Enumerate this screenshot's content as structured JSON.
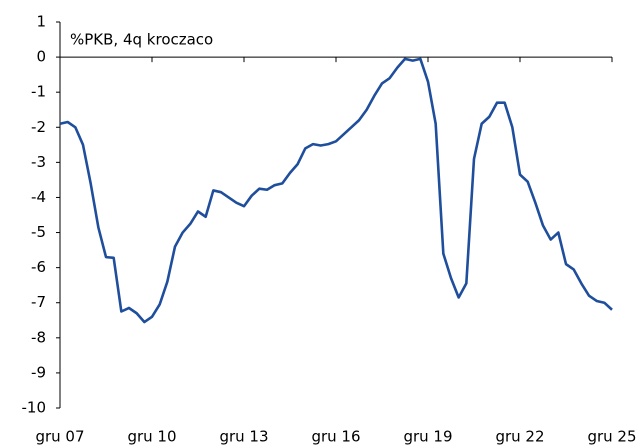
{
  "chart_data": {
    "type": "line",
    "annotation": "%PKB, 4q kroczaco",
    "categories": [
      "gru 07",
      null,
      null,
      null,
      null,
      null,
      null,
      null,
      null,
      null,
      null,
      null,
      "gru 10",
      null,
      null,
      null,
      null,
      null,
      null,
      null,
      null,
      null,
      null,
      null,
      "gru 13",
      null,
      null,
      null,
      null,
      null,
      null,
      null,
      null,
      null,
      null,
      null,
      "gru 16",
      null,
      null,
      null,
      null,
      null,
      null,
      null,
      null,
      null,
      null,
      null,
      "gru 19",
      null,
      null,
      null,
      null,
      null,
      null,
      null,
      null,
      null,
      null,
      null,
      "gru 22",
      null,
      null,
      null,
      null,
      null,
      null,
      null,
      null,
      null,
      null,
      null,
      "gru 25"
    ],
    "series": [
      {
        "name": null,
        "color": "#1f4e9c",
        "values": [
          -1.9,
          -1.85,
          -2.0,
          -2.5,
          -3.6,
          -4.85,
          -5.7,
          -5.72,
          -7.25,
          -7.15,
          -7.3,
          -7.55,
          -7.4,
          -7.05,
          -6.4,
          -5.4,
          -5.0,
          -4.75,
          -4.4,
          -4.55,
          -3.8,
          -3.85,
          -4.0,
          -4.15,
          -4.25,
          -3.95,
          -3.75,
          -3.78,
          -3.65,
          -3.6,
          -3.3,
          -3.05,
          -2.6,
          -2.48,
          -2.52,
          -2.48,
          -2.4,
          -2.2,
          -2.0,
          -1.8,
          -1.5,
          -1.1,
          -0.75,
          -0.6,
          -0.3,
          -0.05,
          -0.1,
          -0.05,
          -0.7,
          -1.9,
          -5.6,
          -6.3,
          -6.85,
          -6.45,
          -2.9,
          -1.9,
          -1.7,
          -1.3,
          -1.3,
          -2.0,
          -3.35,
          -3.55,
          -4.15,
          -4.8,
          -5.2,
          -5.0,
          -5.9,
          -6.05,
          -6.45,
          -6.8,
          -6.95,
          -7.0,
          -7.2
        ]
      }
    ],
    "ylim": [
      -10,
      1
    ],
    "yticks": [
      1,
      0,
      -1,
      -2,
      -3,
      -4,
      -5,
      -6,
      -7,
      -8,
      -9,
      -10
    ]
  }
}
